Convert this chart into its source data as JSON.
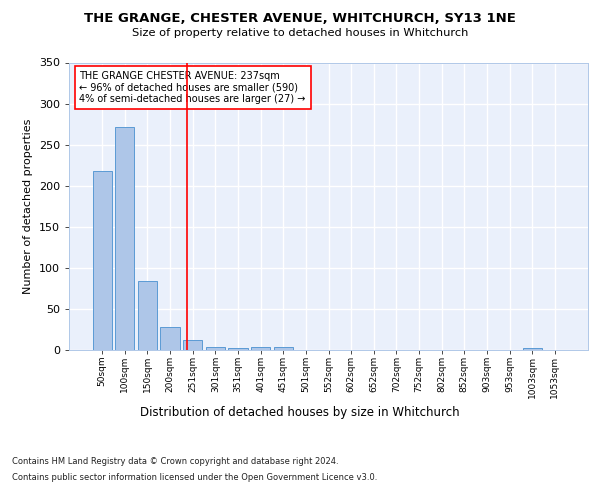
{
  "title": "THE GRANGE, CHESTER AVENUE, WHITCHURCH, SY13 1NE",
  "subtitle": "Size of property relative to detached houses in Whitchurch",
  "xlabel": "Distribution of detached houses by size in Whitchurch",
  "ylabel": "Number of detached properties",
  "bins": [
    "50sqm",
    "100sqm",
    "150sqm",
    "200sqm",
    "251sqm",
    "301sqm",
    "351sqm",
    "401sqm",
    "451sqm",
    "501sqm",
    "552sqm",
    "602sqm",
    "652sqm",
    "702sqm",
    "752sqm",
    "802sqm",
    "852sqm",
    "903sqm",
    "953sqm",
    "1003sqm",
    "1053sqm"
  ],
  "values": [
    218,
    271,
    84,
    28,
    12,
    4,
    3,
    4,
    4,
    0,
    0,
    0,
    0,
    0,
    0,
    0,
    0,
    0,
    0,
    3,
    0
  ],
  "bar_color": "#aec6e8",
  "bar_edge_color": "#5b9bd5",
  "annotation_line1": "THE GRANGE CHESTER AVENUE: 237sqm",
  "annotation_line2": "← 96% of detached houses are smaller (590)",
  "annotation_line3": "4% of semi-detached houses are larger (27) →",
  "footnote1": "Contains HM Land Registry data © Crown copyright and database right 2024.",
  "footnote2": "Contains public sector information licensed under the Open Government Licence v3.0.",
  "bg_color": "#eaf0fb",
  "grid_color": "#ffffff",
  "ylim": [
    0,
    350
  ],
  "yticks": [
    0,
    50,
    100,
    150,
    200,
    250,
    300,
    350
  ]
}
